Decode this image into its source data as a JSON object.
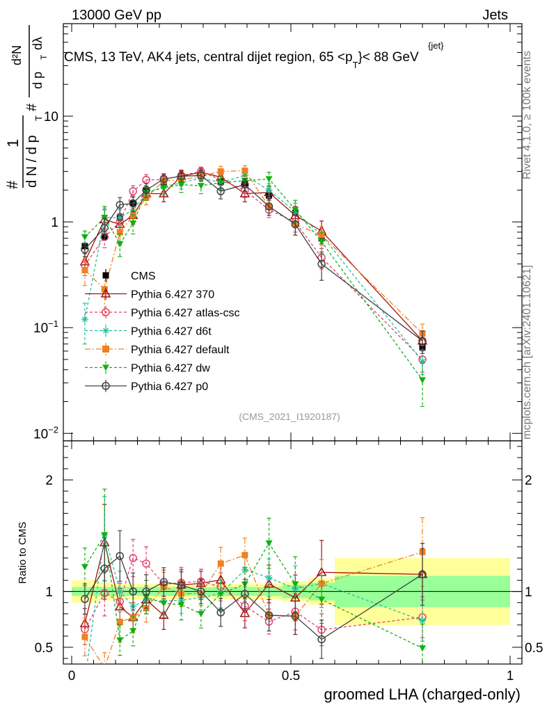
{
  "header": {
    "left": "13000 GeV pp",
    "right": "Jets"
  },
  "side_labels": {
    "rivet": "Rivet 4.1.0, ≥ 100k events",
    "mcplots": "mcplots.cern.ch [arXiv:2401.10621]"
  },
  "plot_title": "CMS, 13 TeV, AK4 jets, central dijet region, 65 <p",
  "plot_title_sup": "{jet}",
  "plot_title_sub": "T",
  "plot_title_tail": "}< 88 GeV",
  "ylabel_main": {
    "hash1": "#",
    "one": "1",
    "dN": "d N / d p",
    "T1": "T",
    "hash2": "#",
    "d2N": "d²N",
    "dpT": "d p",
    "T2": "T",
    "dlambda": "dλ"
  },
  "ylabel_ratio": "Ratio to CMS",
  "xlabel": "groomed LHA (charged-only)",
  "analysis_id": "(CMS_2021_I1920187)",
  "legend_entries": [
    "CMS",
    "Pythia 6.427 370",
    "Pythia 6.427 atlas-csc",
    "Pythia 6.427 d6t",
    "Pythia 6.427 default",
    "Pythia 6.427 dw",
    "Pythia 6.427 p0"
  ],
  "chart_data": {
    "type": "line",
    "xlabel": "groomed LHA (charged-only)",
    "xlim": [
      0,
      1
    ],
    "x_ticks": [
      {
        "value": 0,
        "label": "0"
      },
      {
        "value": 0.5,
        "label": "0.5"
      },
      {
        "value": 1,
        "label": "1"
      }
    ],
    "main": {
      "yscale": "log",
      "ylim": [
        0.0085,
        75
      ],
      "y_ticks": [
        {
          "value": 0.01,
          "base": "10",
          "exp": "−2"
        },
        {
          "value": 0.1,
          "base": "10",
          "exp": "−1"
        },
        {
          "value": 1,
          "base": "1",
          "exp": ""
        },
        {
          "value": 10,
          "base": "10",
          "exp": ""
        }
      ]
    },
    "ratio": {
      "ylabel": "Ratio to CMS",
      "ylim": [
        0.35,
        2.35
      ],
      "y_ticks": [
        {
          "value": 0.5,
          "label": "0.5"
        },
        {
          "value": 1,
          "label": "1"
        },
        {
          "value": 2,
          "label": "2"
        }
      ]
    },
    "x": [
      0.03,
      0.075,
      0.11,
      0.14,
      0.17,
      0.21,
      0.25,
      0.295,
      0.34,
      0.395,
      0.45,
      0.51,
      0.57,
      0.8
    ],
    "x_edges": [
      0,
      0.06,
      0.09,
      0.125,
      0.155,
      0.19,
      0.23,
      0.27,
      0.32,
      0.37,
      0.42,
      0.48,
      0.54,
      0.6,
      1.0
    ],
    "band_green_halfwidth": [
      0.04,
      0.04,
      0.04,
      0.04,
      0.04,
      0.04,
      0.04,
      0.035,
      0.04,
      0.04,
      0.04,
      0.06,
      0.08,
      0.14
    ],
    "band_yellow_halfwidth": [
      0.1,
      0.08,
      0.07,
      0.07,
      0.07,
      0.07,
      0.07,
      0.06,
      0.07,
      0.07,
      0.07,
      0.09,
      0.12,
      0.3
    ],
    "series": [
      {
        "name": "CMS",
        "color": "#000000",
        "marker": "square",
        "dash": "",
        "values": [
          0.59,
          0.73,
          1.1,
          1.5,
          2.0,
          2.35,
          2.55,
          2.75,
          2.4,
          2.3,
          1.78,
          1.22,
          0.7,
          0.065
        ],
        "errors": [
          0.06,
          0.05,
          0.06,
          0.08,
          0.1,
          0.1,
          0.1,
          0.1,
          0.1,
          0.1,
          0.1,
          0.1,
          0.06,
          0.006
        ]
      },
      {
        "name": "Pythia 6.427 370",
        "color": "#a01010",
        "marker": "triangle-open",
        "dash": "",
        "values": [
          0.42,
          1.05,
          0.95,
          1.15,
          1.85,
          1.85,
          2.7,
          2.95,
          2.65,
          1.85,
          1.9,
          1.15,
          0.82,
          0.075
        ],
        "errors": [
          0.08,
          0.25,
          0.18,
          0.2,
          0.25,
          0.3,
          0.35,
          0.3,
          0.3,
          0.3,
          0.3,
          0.25,
          0.2,
          0.015
        ]
      },
      {
        "name": "Pythia 6.427 atlas-csc",
        "color": "#e0406a",
        "marker": "circle-open",
        "dash": "4,3",
        "values": [
          0.39,
          0.72,
          1.0,
          1.95,
          2.5,
          2.5,
          2.75,
          3.0,
          2.5,
          2.0,
          1.3,
          1.0,
          0.46,
          0.05
        ],
        "errors": [
          0.08,
          0.15,
          0.18,
          0.25,
          0.3,
          0.3,
          0.35,
          0.3,
          0.3,
          0.3,
          0.2,
          0.2,
          0.1,
          0.012
        ]
      },
      {
        "name": "Pythia 6.427 d6t",
        "color": "#20c0a0",
        "marker": "star",
        "dash": "4,3",
        "values": [
          0.12,
          1.1,
          1.1,
          1.3,
          1.85,
          2.15,
          2.35,
          2.6,
          2.35,
          2.75,
          2.0,
          1.25,
          0.75,
          0.048
        ],
        "errors": [
          0.05,
          0.25,
          0.2,
          0.2,
          0.25,
          0.3,
          0.3,
          0.3,
          0.3,
          0.35,
          0.3,
          0.25,
          0.15,
          0.012
        ]
      },
      {
        "name": "Pythia 6.427 default",
        "color": "#f08020",
        "marker": "square",
        "dash": "8,3,2,3",
        "values": [
          0.35,
          0.23,
          0.8,
          1.15,
          1.7,
          2.45,
          2.5,
          2.7,
          3.0,
          3.05,
          1.4,
          0.95,
          0.75,
          0.088
        ],
        "errors": [
          0.1,
          0.1,
          0.2,
          0.2,
          0.25,
          0.3,
          0.3,
          0.3,
          0.35,
          0.35,
          0.25,
          0.2,
          0.15,
          0.02
        ]
      },
      {
        "name": "Pythia 6.427 dw",
        "color": "#10b010",
        "marker": "triangle-down",
        "dash": "4,3",
        "values": [
          0.72,
          1.1,
          0.62,
          0.97,
          1.9,
          2.1,
          2.25,
          2.2,
          2.35,
          2.45,
          2.55,
          1.3,
          0.65,
          0.032
        ],
        "errors": [
          0.1,
          0.3,
          0.15,
          0.2,
          0.3,
          0.3,
          0.35,
          0.35,
          0.35,
          0.35,
          0.4,
          0.3,
          0.15,
          0.014
        ]
      },
      {
        "name": "Pythia 6.427 p0",
        "color": "#404040",
        "marker": "circle-open",
        "dash": "",
        "values": [
          0.55,
          0.88,
          1.45,
          1.5,
          2.0,
          2.55,
          2.7,
          2.75,
          1.95,
          2.25,
          1.4,
          0.95,
          0.4,
          0.075
        ],
        "errors": [
          0.08,
          0.2,
          0.25,
          0.25,
          0.3,
          0.3,
          0.3,
          0.3,
          0.3,
          0.3,
          0.25,
          0.2,
          0.12,
          0.018
        ]
      }
    ]
  }
}
